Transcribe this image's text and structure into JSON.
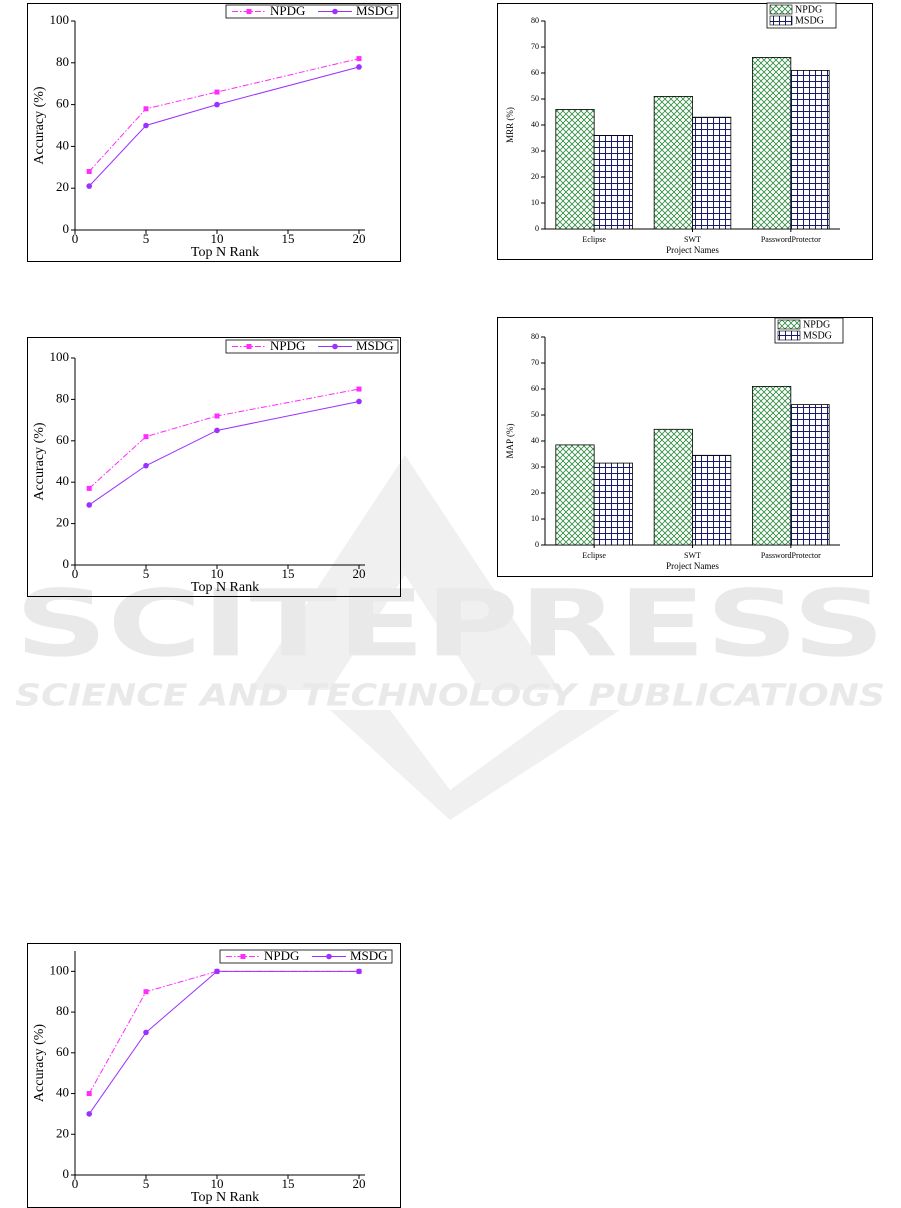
{
  "watermark": {
    "title": "SCITEPRESS",
    "subtitle": "SCIENCE AND TECHNOLOGY PUBLICATIONS"
  },
  "chart_data": [
    {
      "type": "line",
      "xlabel": "Top N Rank",
      "ylabel": "Accuracy (%)",
      "x": [
        1,
        5,
        10,
        20
      ],
      "xlim": [
        0,
        20
      ],
      "xticks": [
        0,
        5,
        10,
        15,
        20
      ],
      "ylim": [
        0,
        100
      ],
      "yticks": [
        0,
        20,
        40,
        60,
        80,
        100
      ],
      "legend": "top-right",
      "series": [
        {
          "name": "NPDG",
          "color": "#ff2bff",
          "line_style": "dash-dot",
          "marker": "square",
          "values": [
            28,
            58,
            66,
            82
          ]
        },
        {
          "name": "MSDG",
          "color": "#9b30ff",
          "line_style": "solid",
          "marker": "circle",
          "values": [
            21,
            50,
            60,
            78
          ]
        }
      ]
    },
    {
      "type": "line",
      "xlabel": "Top N Rank",
      "ylabel": "Accuracy (%)",
      "x": [
        1,
        5,
        10,
        20
      ],
      "xlim": [
        0,
        20
      ],
      "xticks": [
        0,
        5,
        10,
        15,
        20
      ],
      "ylim": [
        0,
        100
      ],
      "yticks": [
        0,
        20,
        40,
        60,
        80,
        100
      ],
      "legend": "top-right",
      "series": [
        {
          "name": "NPDG",
          "color": "#ff2bff",
          "line_style": "dash-dot",
          "marker": "square",
          "values": [
            37,
            62,
            72,
            85
          ]
        },
        {
          "name": "MSDG",
          "color": "#9b30ff",
          "line_style": "solid",
          "marker": "circle",
          "values": [
            29,
            48,
            65,
            79
          ]
        }
      ]
    },
    {
      "type": "line",
      "xlabel": "Top N Rank",
      "ylabel": "Accuracy (%)",
      "x": [
        1,
        5,
        10,
        20
      ],
      "xlim": [
        0,
        20
      ],
      "xticks": [
        0,
        5,
        10,
        15,
        20
      ],
      "ylim": [
        0,
        110
      ],
      "yticks": [
        0,
        20,
        40,
        60,
        80,
        100
      ],
      "legend": "top-right",
      "series": [
        {
          "name": "NPDG",
          "color": "#ff2bff",
          "line_style": "dash-dot",
          "marker": "square",
          "values": [
            40,
            90,
            100,
            100
          ]
        },
        {
          "name": "MSDG",
          "color": "#9b30ff",
          "line_style": "solid",
          "marker": "circle",
          "values": [
            30,
            70,
            100,
            100
          ]
        }
      ]
    },
    {
      "type": "bar",
      "xlabel": "Project Names",
      "ylabel": "MRR (%)",
      "categories": [
        "Eclipse",
        "SWT",
        "PasswordProtector"
      ],
      "ylim": [
        0,
        80
      ],
      "yticks": [
        0,
        10,
        20,
        30,
        40,
        50,
        60,
        70,
        80
      ],
      "legend": "top-right",
      "series": [
        {
          "name": "NPDG",
          "color": "#2e8b3e",
          "pattern": "crosshatch",
          "values": [
            46,
            51,
            66
          ]
        },
        {
          "name": "MSDG",
          "color": "#1a1a6e",
          "pattern": "grid",
          "values": [
            36,
            43,
            61
          ]
        }
      ]
    },
    {
      "type": "bar",
      "xlabel": "Project Names",
      "ylabel": "MAP (%)",
      "categories": [
        "Eclipse",
        "SWT",
        "PasswordProtector"
      ],
      "ylim": [
        0,
        80
      ],
      "yticks": [
        0,
        10,
        20,
        30,
        40,
        50,
        60,
        70,
        80
      ],
      "legend": "top-right",
      "series": [
        {
          "name": "NPDG",
          "color": "#2e8b3e",
          "pattern": "crosshatch",
          "values": [
            38.5,
            44.5,
            61
          ]
        },
        {
          "name": "MSDG",
          "color": "#1a1a6e",
          "pattern": "grid",
          "values": [
            31.5,
            34.5,
            54
          ]
        }
      ]
    }
  ]
}
